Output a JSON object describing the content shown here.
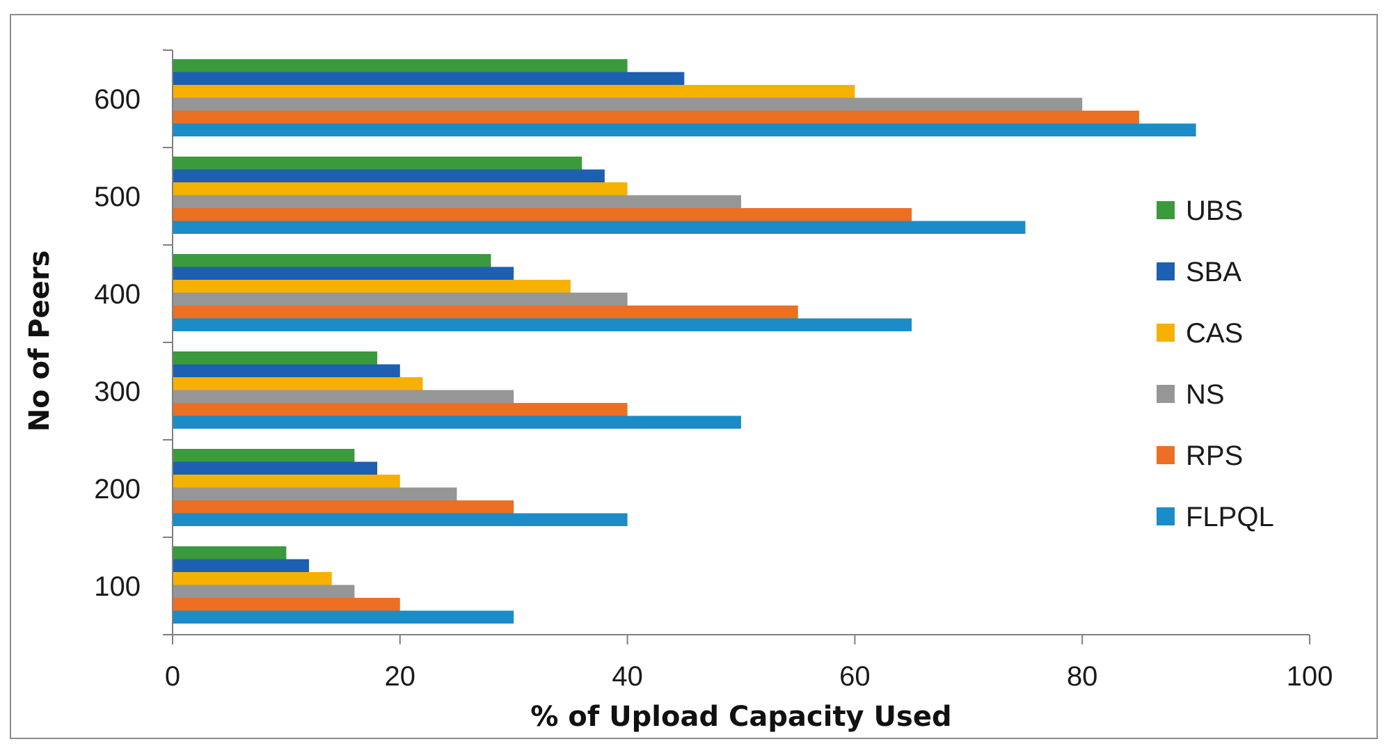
{
  "chart_data": {
    "type": "bar",
    "orientation": "horizontal",
    "title": "",
    "xlabel": "% of Upload Capacity Used",
    "ylabel": "No of Peers",
    "xlim": [
      0,
      100
    ],
    "x_ticks": [
      "0",
      "20",
      "40",
      "60",
      "80",
      "100"
    ],
    "categories": [
      "100",
      "200",
      "300",
      "400",
      "500",
      "600"
    ],
    "series": [
      {
        "name": "UBS",
        "color": "#3a9a3c",
        "values": [
          10,
          16,
          18,
          28,
          36,
          40
        ]
      },
      {
        "name": "SBA",
        "color": "#1d5fb0",
        "values": [
          12,
          18,
          20,
          30,
          38,
          45
        ]
      },
      {
        "name": "CAS",
        "color": "#f6b100",
        "values": [
          14,
          20,
          22,
          35,
          40,
          60
        ]
      },
      {
        "name": "NS",
        "color": "#969696",
        "values": [
          16,
          25,
          30,
          40,
          50,
          80
        ]
      },
      {
        "name": "RPS",
        "color": "#ec6f24",
        "values": [
          20,
          30,
          40,
          55,
          65,
          85
        ]
      },
      {
        "name": "FLPQL",
        "color": "#1a8cc8",
        "values": [
          30,
          40,
          50,
          65,
          75,
          90
        ]
      }
    ],
    "legend_position": "right",
    "grid": false
  }
}
